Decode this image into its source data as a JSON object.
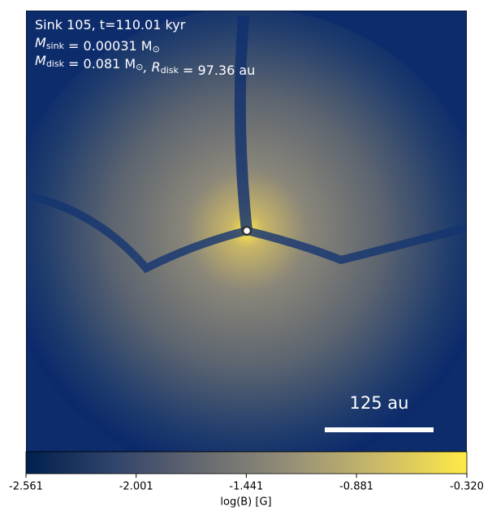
{
  "chart_data": {
    "type": "image",
    "annotations": [
      [
        [
          "Sink 105, t=110.01 kyr",
          ""
        ]
      ],
      [
        [
          "M",
          "sink"
        ],
        [
          " = 0.00031 M",
          "⊙"
        ]
      ],
      [
        [
          "M",
          "disk"
        ],
        [
          " = 0.081 M",
          "⊙"
        ],
        [
          ", R",
          "disk"
        ],
        [
          " = 97.36 au",
          ""
        ]
      ]
    ],
    "scale_bar_label": "125 au",
    "colorbar": {
      "label": "log(B) [G]",
      "colormap": "cividis",
      "clim": [
        -2.561,
        -0.32
      ],
      "ticks": [
        -2.561,
        -2.001,
        -1.441,
        -0.881,
        {
          "value": -0.32,
          "label": "-0.320"
        }
      ]
    }
  }
}
